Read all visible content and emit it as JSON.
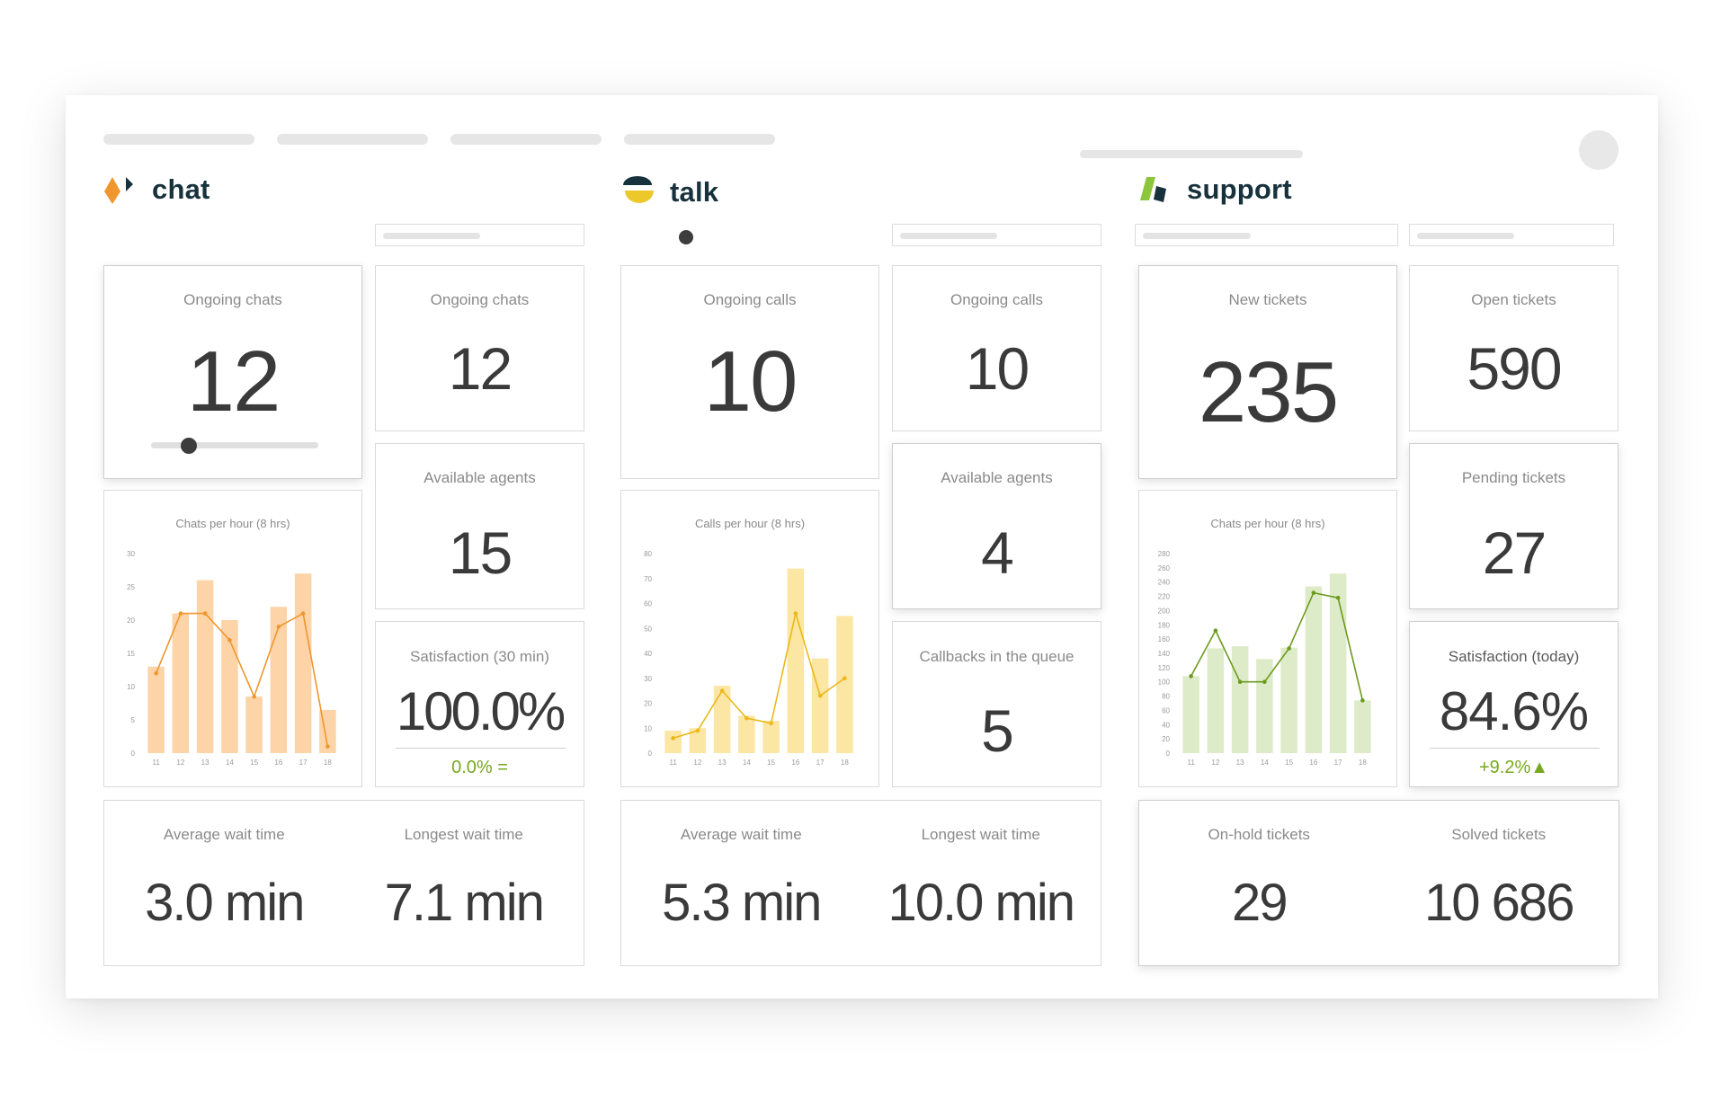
{
  "nav": {
    "items": [
      "",
      "",
      "",
      "",
      ""
    ]
  },
  "chat": {
    "brand": "chat",
    "primary": {
      "label": "Ongoing chats",
      "value": "12",
      "slider_fraction": 0.23
    },
    "ongoing": {
      "label": "Ongoing chats",
      "value": "12"
    },
    "agents": {
      "label": "Available agents",
      "value": "15"
    },
    "satisfaction": {
      "label": "Satisfaction (30 min)",
      "value": "100.0%",
      "delta": "0.0% ="
    },
    "wait": {
      "avg_label": "Average wait time",
      "avg_value": "3.0 min",
      "longest_label": "Longest wait time",
      "longest_value": "7.1 min"
    }
  },
  "talk": {
    "brand": "talk",
    "primary": {
      "label": "Ongoing calls",
      "value": "10"
    },
    "ongoing": {
      "label": "Ongoing calls",
      "value": "10"
    },
    "agents": {
      "label": "Available agents",
      "value": "4"
    },
    "callbacks": {
      "label": "Callbacks in the queue",
      "value": "5"
    },
    "wait": {
      "avg_label": "Average wait time",
      "avg_value": "5.3 min",
      "longest_label": "Longest wait time",
      "longest_value": "10.0 min"
    }
  },
  "support": {
    "brand": "support",
    "new_tickets": {
      "label": "New tickets",
      "value": "235"
    },
    "open_tickets": {
      "label": "Open tickets",
      "value": "590"
    },
    "pending_tickets": {
      "label": "Pending tickets",
      "value": "27"
    },
    "satisfaction": {
      "label": "Satisfaction (today)",
      "value": "84.6%",
      "delta": "+9.2%▲"
    },
    "tickets": {
      "onhold_label": "On-hold tickets",
      "onhold_value": "29",
      "solved_label": "Solved tickets",
      "solved_value": "10 686"
    }
  },
  "colors": {
    "chat_bar": "#fdd3a8",
    "chat_line": "#f0962e",
    "talk_bar": "#fbe6a3",
    "talk_line": "#ecb81a",
    "support_bar": "#ddebc8",
    "support_line": "#6c9a1e",
    "positive": "#78a81e"
  },
  "chart_data": [
    {
      "type": "bar",
      "title": "Chats per hour (8 hrs)",
      "categories": [
        "11",
        "12",
        "13",
        "14",
        "15",
        "16",
        "17",
        "18"
      ],
      "yticks": [
        0,
        5,
        10,
        15,
        20,
        25,
        30
      ],
      "ylim": [
        0,
        30
      ],
      "series": [
        {
          "type": "bar",
          "values": [
            13,
            21,
            26,
            20,
            8.5,
            22,
            27,
            6.5
          ]
        },
        {
          "type": "line",
          "values": [
            12,
            21,
            21,
            17,
            8.5,
            19,
            21,
            1
          ]
        }
      ]
    },
    {
      "type": "bar",
      "title": "Calls per hour (8 hrs)",
      "categories": [
        "11",
        "12",
        "13",
        "14",
        "15",
        "16",
        "17",
        "18"
      ],
      "yticks": [
        0,
        10,
        20,
        30,
        40,
        50,
        60,
        70,
        80
      ],
      "ylim": [
        0,
        80
      ],
      "series": [
        {
          "type": "bar",
          "values": [
            9,
            10,
            27,
            15,
            13,
            74,
            38,
            55
          ]
        },
        {
          "type": "line",
          "values": [
            6,
            9,
            25,
            14,
            12,
            56,
            23,
            30
          ]
        }
      ]
    },
    {
      "type": "bar",
      "title": "Chats per hour (8 hrs)",
      "categories": [
        "11",
        "12",
        "13",
        "14",
        "15",
        "16",
        "17",
        "18"
      ],
      "yticks": [
        0,
        20,
        40,
        60,
        80,
        100,
        120,
        140,
        160,
        180,
        200,
        220,
        240,
        260,
        280
      ],
      "ylim": [
        0,
        280
      ],
      "series": [
        {
          "type": "bar",
          "values": [
            108,
            147,
            150,
            132,
            148,
            234,
            252,
            74
          ]
        },
        {
          "type": "line",
          "values": [
            108,
            172,
            100,
            100,
            147,
            225,
            218,
            74
          ]
        }
      ]
    }
  ]
}
